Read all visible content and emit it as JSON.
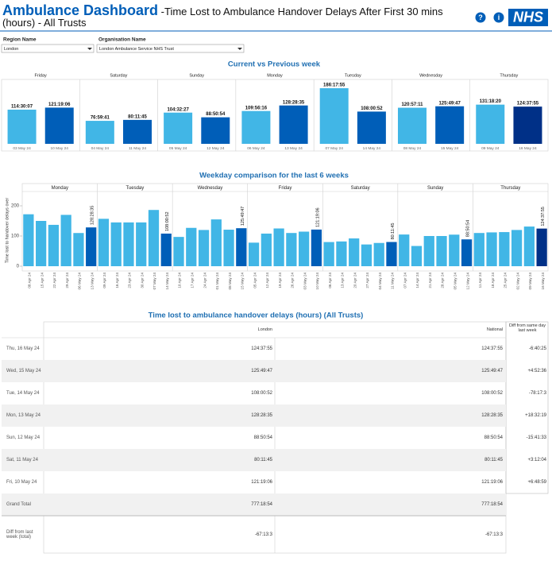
{
  "header": {
    "title": "Ambulance Dashboard",
    "subtitle": "-Time Lost to Ambulance Handover Delays After First 30 mins (hours) - All Trusts",
    "help": "?",
    "info": "i",
    "logo": "NHS"
  },
  "filters": [
    {
      "label": "Region Name",
      "value": "London"
    },
    {
      "label": "Organisation Name",
      "value": "London Ambulance Service NHS Trust"
    }
  ],
  "chart_data": [
    {
      "type": "bar",
      "title": "Current vs Previous week",
      "categories": [
        "Friday",
        "Saturday",
        "Sunday",
        "Monday",
        "Tuesday",
        "Wednesday",
        "Thursday"
      ],
      "series": [
        {
          "color": "#41b6e6",
          "dates": [
            "03 May 24",
            "04 May 24",
            "05 May 24",
            "06 May 24",
            "07 May 24",
            "08 May 24",
            "09 May 24"
          ],
          "values": [
            114.5019,
            76.9947,
            104.5408,
            109.9378,
            186.2986,
            120.9531,
            131.3056
          ],
          "value_labels": [
            "114:30:07",
            "76:59:41",
            "104:32:27",
            "109:56:16",
            "186:17:55",
            "120:57:11",
            "131:18:20"
          ]
        },
        {
          "colors": [
            "#005eb8",
            "#005eb8",
            "#005eb8",
            "#005eb8",
            "#005eb8",
            "#005eb8",
            "#003087"
          ],
          "dates": [
            "10 May 24",
            "11 May 24",
            "12 May 24",
            "13 May 24",
            "14 May 24",
            "15 May 24",
            "16 May 24"
          ],
          "values": [
            121.3183,
            80.1958,
            88.8483,
            128.4764,
            108.0144,
            125.8297,
            124.6319
          ],
          "value_labels": [
            "121:19:06",
            "80:11:45",
            "88:50:54",
            "128:28:35",
            "108:00:52",
            "125:49:47",
            "124:37:55"
          ]
        }
      ]
    },
    {
      "type": "bar",
      "title": "Weekday comparison for the last 6 weeks",
      "y_label": "Time lost to handover delays over",
      "ylim": [
        0,
        250
      ],
      "yticks": [
        0,
        100,
        200
      ],
      "categories": [
        "Monday",
        "Tuesday",
        "Wednesday",
        "Friday",
        "Saturday",
        "Sunday",
        "Thursday"
      ],
      "groups": [
        {
          "dates": [
            "08 Apr 24",
            "15 Apr 24",
            "22 Apr 24",
            "29 Apr 24",
            "06 May 24",
            "13 May 24"
          ],
          "values": [
            172,
            150,
            137,
            170,
            109.9378,
            128.4764
          ],
          "value_labels": [
            null,
            null,
            null,
            null,
            null,
            "128:28:35"
          ],
          "colors": [
            "#41b6e6",
            "#41b6e6",
            "#41b6e6",
            "#41b6e6",
            "#41b6e6",
            "#005eb8"
          ]
        },
        {
          "dates": [
            "09 Apr 24",
            "16 Apr 24",
            "23 Apr 24",
            "30 Apr 24",
            "07 May 24",
            "14 May 24"
          ],
          "values": [
            157,
            145,
            145,
            145,
            186.2986,
            108.0144
          ],
          "value_labels": [
            null,
            null,
            null,
            null,
            null,
            "108:00:52"
          ],
          "colors": [
            "#41b6e6",
            "#41b6e6",
            "#41b6e6",
            "#41b6e6",
            "#41b6e6",
            "#005eb8"
          ]
        },
        {
          "dates": [
            "10 Apr 24",
            "17 Apr 24",
            "24 Apr 24",
            "01 May 24",
            "08 May 24",
            "15 May 24"
          ],
          "values": [
            97,
            127,
            120,
            155,
            120.9531,
            125.8297
          ],
          "value_labels": [
            null,
            null,
            null,
            null,
            null,
            "125:49:47"
          ],
          "colors": [
            "#41b6e6",
            "#41b6e6",
            "#41b6e6",
            "#41b6e6",
            "#41b6e6",
            "#005eb8"
          ]
        },
        {
          "dates": [
            "05 Apr 24",
            "12 Apr 24",
            "19 Apr 24",
            "26 Apr 24",
            "03 May 24",
            "10 May 24"
          ],
          "values": [
            78,
            108,
            125,
            110,
            114.5019,
            121.3183
          ],
          "value_labels": [
            null,
            null,
            null,
            null,
            null,
            "121:19:06"
          ],
          "colors": [
            "#41b6e6",
            "#41b6e6",
            "#41b6e6",
            "#41b6e6",
            "#41b6e6",
            "#005eb8"
          ]
        },
        {
          "dates": [
            "06 Apr 24",
            "13 Apr 24",
            "20 Apr 24",
            "27 Apr 24",
            "04 May 24",
            "11 May 24"
          ],
          "values": [
            80,
            82,
            92,
            72,
            76.9947,
            80.1958
          ],
          "value_labels": [
            null,
            null,
            null,
            null,
            null,
            "80:11:45"
          ],
          "colors": [
            "#41b6e6",
            "#41b6e6",
            "#41b6e6",
            "#41b6e6",
            "#41b6e6",
            "#005eb8"
          ]
        },
        {
          "dates": [
            "07 Apr 24",
            "14 Apr 24",
            "21 Apr 24",
            "28 Apr 24",
            "05 May 24",
            "12 May 24"
          ],
          "values": [
            105,
            67,
            100,
            100,
            104.5408,
            88.8483
          ],
          "value_labels": [
            null,
            null,
            null,
            null,
            null,
            "88:50:54"
          ],
          "colors": [
            "#41b6e6",
            "#41b6e6",
            "#41b6e6",
            "#41b6e6",
            "#41b6e6",
            "#005eb8"
          ]
        },
        {
          "dates": [
            "11 Apr 24",
            "18 Apr 24",
            "25 Apr 24",
            "02 May 24",
            "09 May 24",
            "16 May 24"
          ],
          "values": [
            110,
            112,
            113,
            120,
            131.3056,
            124.6319
          ],
          "value_labels": [
            null,
            null,
            null,
            null,
            null,
            "124:37:55"
          ],
          "colors": [
            "#41b6e6",
            "#41b6e6",
            "#41b6e6",
            "#41b6e6",
            "#41b6e6",
            "#003087"
          ]
        }
      ]
    }
  ],
  "table": {
    "title": "Time lost to ambulance handover delays (hours) (All Trusts)",
    "columns": [
      "London",
      "National",
      "Diff from same day last week"
    ],
    "rows": [
      [
        "Thu, 16 May 24",
        "124:37:55",
        "124:37:55",
        "-6:40:25"
      ],
      [
        "Wed, 15 May 24",
        "125:49:47",
        "125:49:47",
        "+4:52:36"
      ],
      [
        "Tue, 14 May 24",
        "108:00:52",
        "108:00:52",
        "-78:17:3"
      ],
      [
        "Mon, 13 May 24",
        "128:28:35",
        "128:28:35",
        "+18:32:19"
      ],
      [
        "Sun, 12 May 24",
        "88:50:54",
        "88:50:54",
        "-15:41:33"
      ],
      [
        "Sat, 11 May 24",
        "80:11:45",
        "80:11:45",
        "+3:12:04"
      ],
      [
        "Fri, 10 May 24",
        "121:19:06",
        "121:19:06",
        "+6:48:59"
      ],
      [
        "Grand Total",
        "777:18:54",
        "777:18:54"
      ],
      [
        "Diff from last week (total)",
        "-67:13:3",
        "-67:13:3"
      ]
    ]
  }
}
